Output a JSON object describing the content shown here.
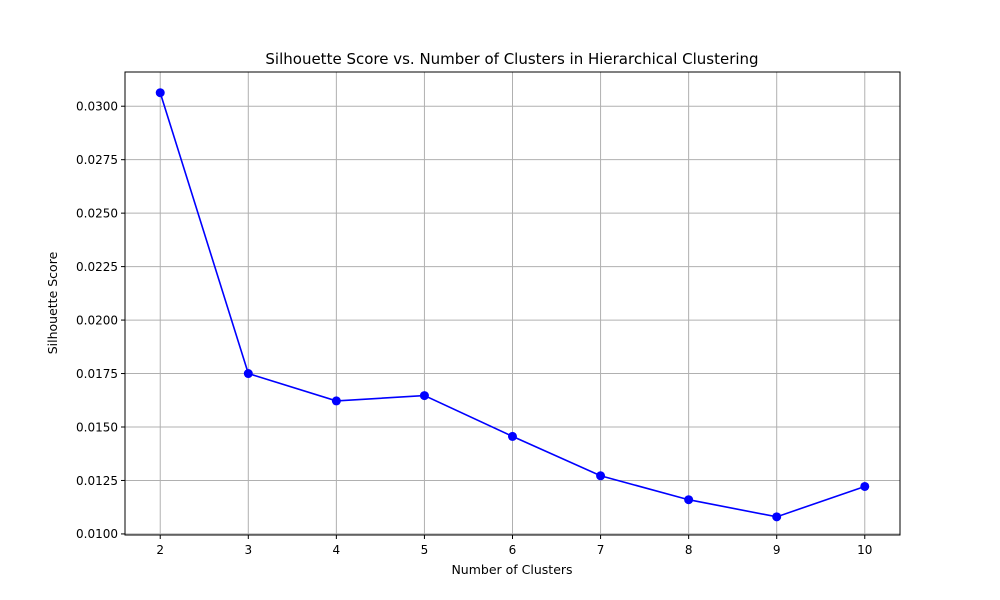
{
  "chart_data": {
    "type": "line",
    "title": "Silhouette Score vs. Number of Clusters in Hierarchical Clustering",
    "xlabel": "Number of Clusters",
    "ylabel": "Silhouette Score",
    "x": [
      2,
      3,
      4,
      5,
      6,
      7,
      8,
      9,
      10
    ],
    "y": [
      0.03063,
      0.0175,
      0.01622,
      0.01647,
      0.01456,
      0.01272,
      0.0116,
      0.0108,
      0.01222
    ],
    "xlim": [
      1.6,
      10.4
    ],
    "ylim": [
      0.00995,
      0.0316
    ],
    "xticks": [
      2,
      3,
      4,
      5,
      6,
      7,
      8,
      9,
      10
    ],
    "yticks": [
      0.01,
      0.0125,
      0.015,
      0.0175,
      0.02,
      0.0225,
      0.025,
      0.0275,
      0.03
    ],
    "ytick_labels": [
      "0.0100",
      "0.0125",
      "0.0150",
      "0.0175",
      "0.0200",
      "0.0225",
      "0.0250",
      "0.0275",
      "0.0300"
    ],
    "grid": true,
    "line_color": "#0000ff",
    "marker": "circle",
    "grid_color": "#b0b0b0"
  }
}
